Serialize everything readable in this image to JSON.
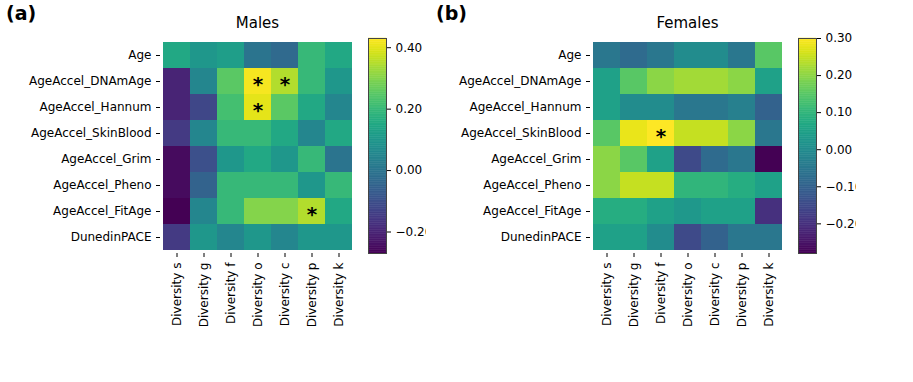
{
  "chart_data": [
    {
      "type": "heatmap",
      "panel_label": "(a)",
      "title": "Males",
      "color": "viridis",
      "x": [
        "Diversity s",
        "Diversity g",
        "Diversity f",
        "Diversity o",
        "Diversity c",
        "Diversity p",
        "Diversity k"
      ],
      "y": [
        "Age",
        "AgeAccel_DNAmAge",
        "AgeAccel_Hannum",
        "AgeAccel_SkinBlood",
        "AgeAccel_Grim",
        "AgeAccel_Pheno",
        "AgeAccel_FitAge",
        "DunedinPACE"
      ],
      "values": [
        [
          0.15,
          0.1,
          0.12,
          0.0,
          -0.03,
          0.2,
          0.15
        ],
        [
          -0.2,
          0.05,
          0.25,
          0.42,
          0.35,
          0.2,
          0.1
        ],
        [
          -0.2,
          -0.12,
          0.22,
          0.4,
          0.25,
          0.15,
          0.05
        ],
        [
          -0.15,
          0.05,
          0.2,
          0.2,
          0.15,
          0.05,
          0.15
        ],
        [
          -0.25,
          -0.1,
          0.1,
          0.15,
          0.1,
          0.2,
          0.0
        ],
        [
          -0.25,
          -0.05,
          0.2,
          0.2,
          0.2,
          0.1,
          0.2
        ],
        [
          -0.27,
          0.05,
          0.2,
          0.3,
          0.3,
          0.35,
          0.15
        ],
        [
          -0.15,
          0.1,
          0.05,
          0.1,
          0.05,
          0.1,
          0.1
        ]
      ],
      "annotations": [
        {
          "row": "AgeAccel_DNAmAge",
          "column": "Diversity o",
          "text": "*"
        },
        {
          "row": "AgeAccel_DNAmAge",
          "column": "Diversity c",
          "text": "*"
        },
        {
          "row": "AgeAccel_Hannum",
          "column": "Diversity o",
          "text": "*"
        },
        {
          "row": "AgeAccel_FitAge",
          "column": "Diversity p",
          "text": "*"
        }
      ],
      "colorbar": {
        "range": [
          -0.27,
          0.43
        ],
        "ticks": [
          -0.2,
          0,
          0.2,
          0.4
        ]
      }
    },
    {
      "type": "heatmap",
      "panel_label": "(b)",
      "title": "Females",
      "color": "viridis",
      "x": [
        "Diversity s",
        "Diversity g",
        "Diversity f",
        "Diversity o",
        "Diversity c",
        "Diversity p",
        "Diversity k"
      ],
      "y": [
        "Age",
        "AgeAccel_DNAmAge",
        "AgeAccel_Hannum",
        "AgeAccel_SkinBlood",
        "AgeAccel_Grim",
        "AgeAccel_Pheno",
        "AgeAccel_FitAge",
        "DunedinPACE"
      ],
      "values": [
        [
          -0.05,
          -0.08,
          -0.05,
          0.0,
          0.0,
          -0.05,
          0.15
        ],
        [
          0.05,
          0.15,
          0.2,
          0.22,
          0.22,
          0.2,
          0.05
        ],
        [
          0.05,
          0.0,
          0.0,
          -0.05,
          -0.05,
          -0.03,
          -0.1
        ],
        [
          0.15,
          0.28,
          0.3,
          0.25,
          0.25,
          0.2,
          -0.05
        ],
        [
          0.2,
          0.15,
          0.05,
          -0.15,
          -0.08,
          -0.05,
          -0.28
        ],
        [
          0.2,
          0.25,
          0.25,
          0.1,
          0.1,
          0.08,
          0.05
        ],
        [
          0.08,
          0.08,
          0.05,
          0.03,
          0.05,
          0.05,
          -0.2
        ],
        [
          0.05,
          0.05,
          0.0,
          -0.15,
          -0.1,
          -0.05,
          -0.05
        ]
      ],
      "annotations": [
        {
          "row": "AgeAccel_SkinBlood",
          "column": "Diversity f",
          "text": "*"
        }
      ],
      "colorbar": {
        "range": [
          -0.28,
          0.3
        ],
        "ticks": [
          -0.2,
          -0.1,
          0,
          0.1,
          0.2,
          0.3
        ]
      }
    }
  ]
}
